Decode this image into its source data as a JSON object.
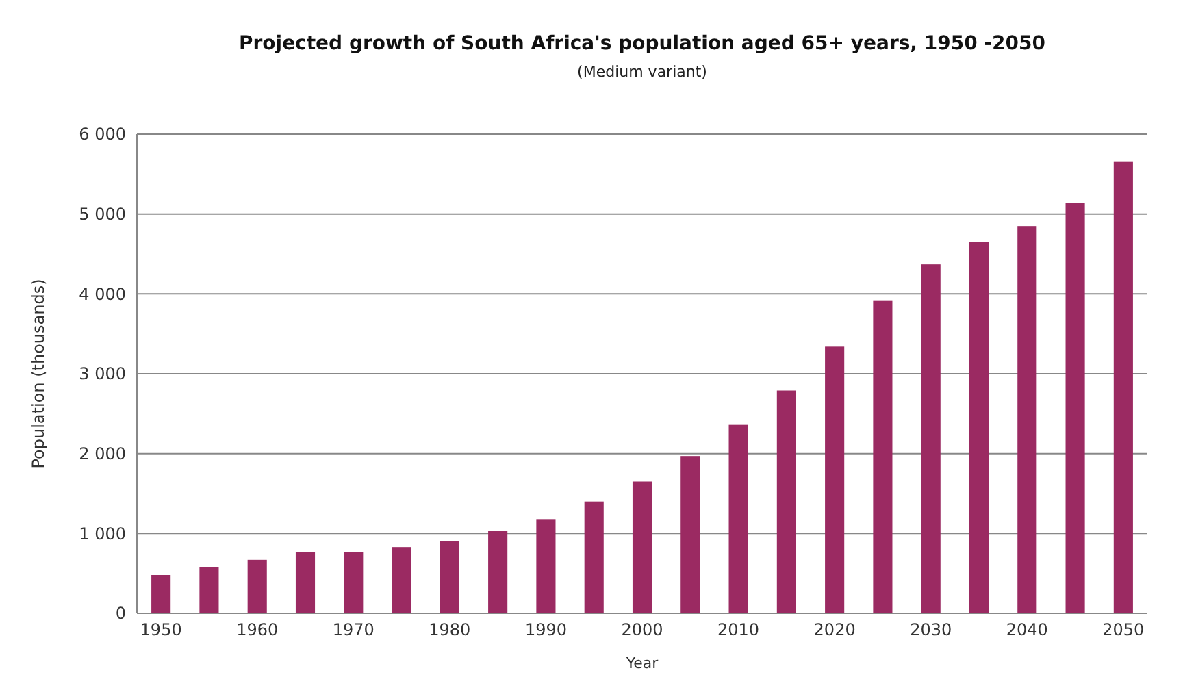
{
  "chart_data": {
    "type": "bar",
    "title": "Projected growth of South Africa's population aged 65+ years, 1950 -2050",
    "subtitle": "(Medium variant)",
    "xlabel": "Year",
    "ylabel": "Population (thousands)",
    "categories": [
      "1950",
      null,
      "1960",
      null,
      "1970",
      null,
      "1980",
      null,
      "1990",
      null,
      "2000",
      null,
      "2010",
      null,
      "2020",
      null,
      "2030",
      null,
      "2040",
      null,
      "2050"
    ],
    "values": [
      480,
      580,
      670,
      770,
      770,
      830,
      900,
      1030,
      1180,
      1400,
      1650,
      1970,
      2360,
      2790,
      3340,
      3920,
      4370,
      4650,
      4850,
      5140,
      5660
    ],
    "color": "#9b2a62",
    "ylim": [
      0,
      6000
    ],
    "yticks": [
      0,
      {
        "value": 1000,
        "label": "1 000"
      },
      {
        "value": 2000,
        "label": "2 000"
      },
      {
        "value": 3000,
        "label": "3 000"
      },
      {
        "value": 4000,
        "label": "4 000"
      },
      {
        "value": 5000,
        "label": "5 000"
      },
      {
        "value": 6000,
        "label": "6 000"
      }
    ],
    "grid": "y"
  }
}
